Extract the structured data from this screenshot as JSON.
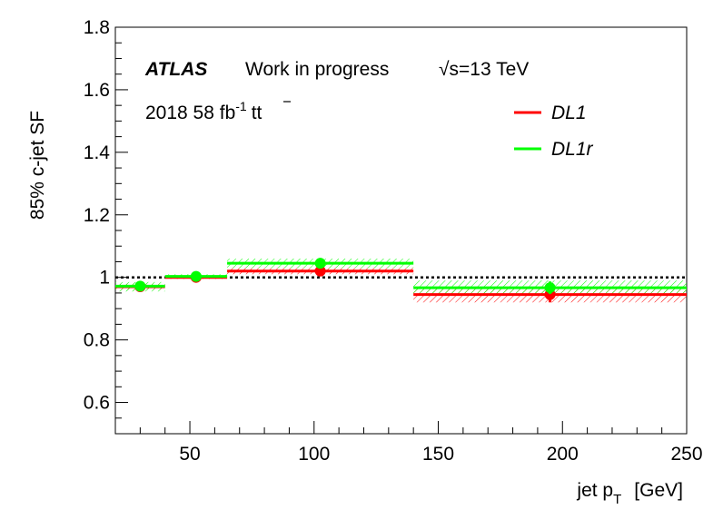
{
  "chart_data": {
    "type": "line",
    "title": "",
    "xlabel": "jet p_T  [GeV]",
    "xlabel_main": "jet p",
    "xlabel_sub": "T",
    "xlabel_unit": "[GeV]",
    "ylabel": "85% c-jet SF",
    "xlim": [
      20,
      250
    ],
    "ylim": [
      0.5,
      1.8
    ],
    "x_ticks": [
      50,
      100,
      150,
      200,
      250
    ],
    "y_ticks": [
      0.6,
      0.8,
      1.0,
      1.2,
      1.4,
      1.6,
      1.8
    ],
    "y_tick_labels": [
      "0.6",
      "0.8",
      "1",
      "1.2",
      "1.4",
      "1.6",
      "1.8"
    ],
    "grid": false,
    "reference_line": {
      "y": 1.0,
      "style": "dotted",
      "color": "#000000"
    },
    "bins": [
      [
        20,
        40
      ],
      [
        40,
        65
      ],
      [
        65,
        140
      ],
      [
        140,
        250
      ]
    ],
    "series": [
      {
        "name": "DL1",
        "color": "#ff0000",
        "x": [
          30,
          52.5,
          102.5,
          195
        ],
        "values": [
          0.97,
          1.0,
          1.02,
          0.945
        ],
        "stat_err": [
          0.01,
          0.005,
          0.01,
          0.025
        ],
        "band_low": [
          0.96,
          0.995,
          1.01,
          0.92
        ],
        "band_high": [
          0.98,
          1.005,
          1.03,
          0.97
        ]
      },
      {
        "name": "DL1r",
        "color": "#00ff00",
        "x": [
          30,
          52.5,
          102.5,
          195
        ],
        "values": [
          0.972,
          1.003,
          1.045,
          0.967
        ],
        "stat_err": [
          0.01,
          0.005,
          0.01,
          0.02
        ],
        "band_low": [
          0.955,
          0.997,
          1.03,
          0.945
        ],
        "band_high": [
          0.985,
          1.01,
          1.06,
          0.99
        ]
      }
    ],
    "legend_position": "top-right",
    "annotations": {
      "experiment": "ATLAS",
      "status": "Work in progress",
      "energy_sqrt": "√s",
      "energy_value": "=13 TeV",
      "dataset_prefix": "2018 58 fb",
      "dataset_exp": "-1",
      "dataset_process": "tt",
      "dataset_bar": "̄"
    }
  }
}
